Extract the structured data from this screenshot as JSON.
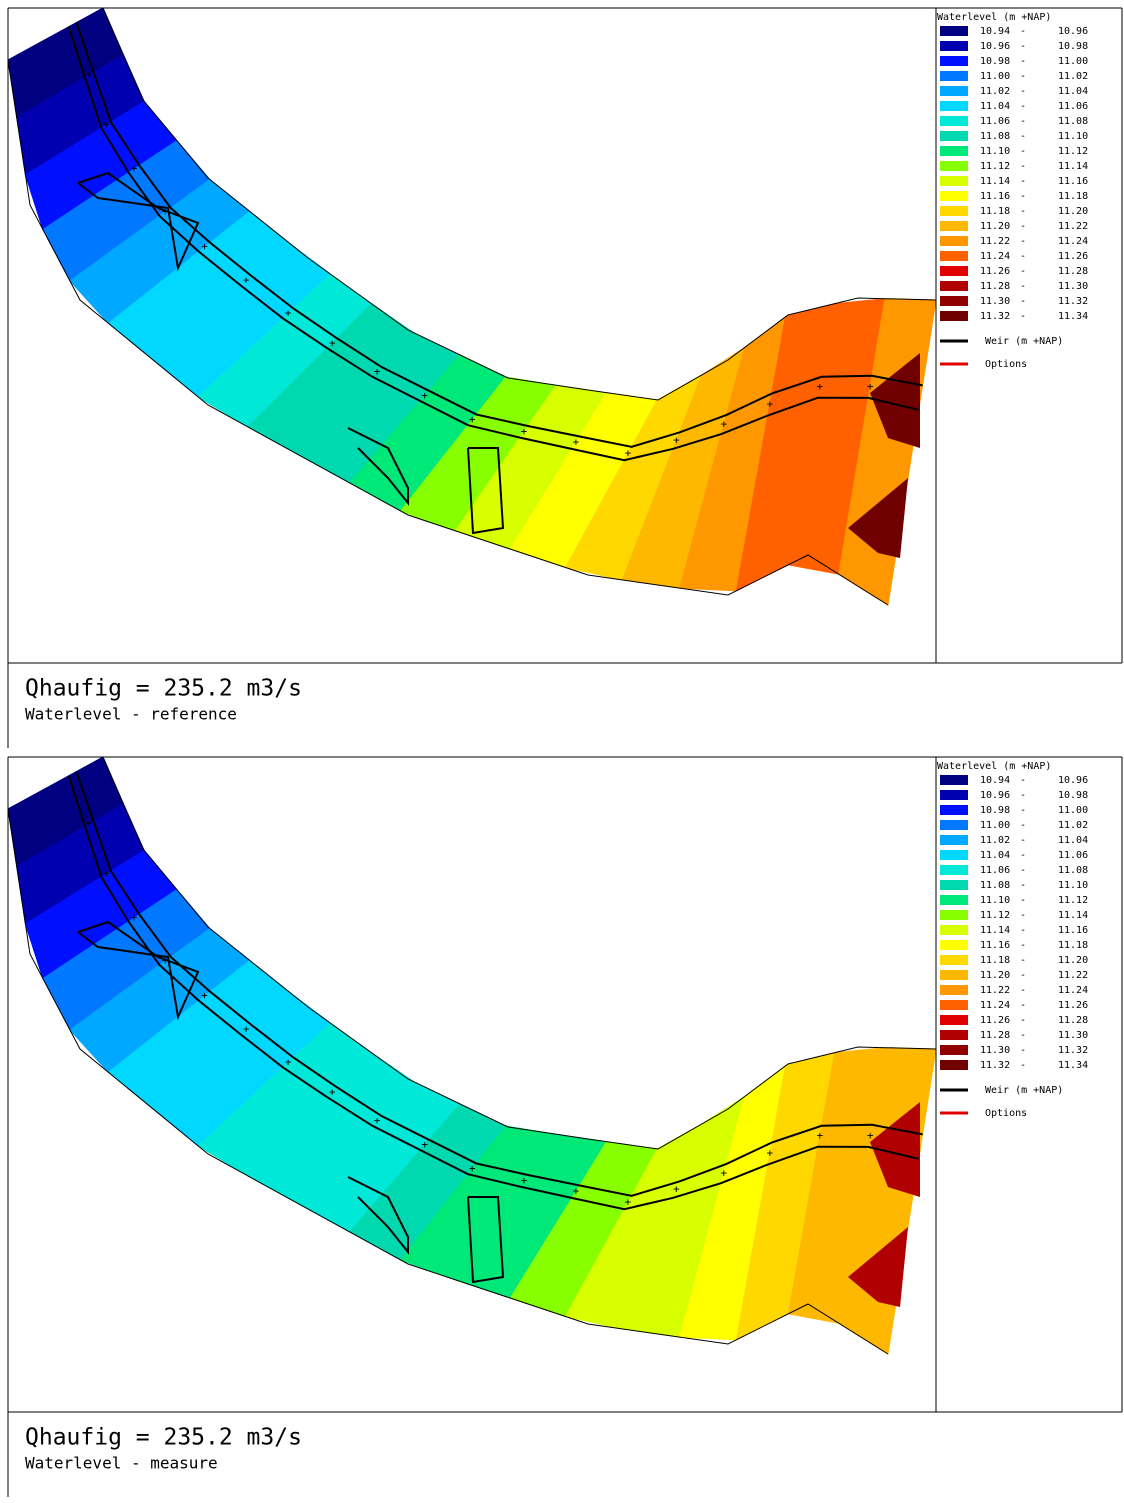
{
  "legend": {
    "title": "Waterlevel (m +NAP)",
    "items": [
      {
        "from": "10.94",
        "to": "10.96",
        "color": "#000080"
      },
      {
        "from": "10.96",
        "to": "10.98",
        "color": "#0000b0"
      },
      {
        "from": "10.98",
        "to": "11.00",
        "color": "#0010ff"
      },
      {
        "from": "11.00",
        "to": "11.02",
        "color": "#0078ff"
      },
      {
        "from": "11.02",
        "to": "11.04",
        "color": "#00a8ff"
      },
      {
        "from": "11.04",
        "to": "11.06",
        "color": "#00d8ff"
      },
      {
        "from": "11.06",
        "to": "11.08",
        "color": "#00e8d8"
      },
      {
        "from": "11.08",
        "to": "11.10",
        "color": "#00d8b0"
      },
      {
        "from": "11.10",
        "to": "11.12",
        "color": "#00e878"
      },
      {
        "from": "11.12",
        "to": "11.14",
        "color": "#88ff00"
      },
      {
        "from": "11.14",
        "to": "11.16",
        "color": "#d8ff00"
      },
      {
        "from": "11.16",
        "to": "11.18",
        "color": "#ffff00"
      },
      {
        "from": "11.18",
        "to": "11.20",
        "color": "#ffd800"
      },
      {
        "from": "11.20",
        "to": "11.22",
        "color": "#ffb800"
      },
      {
        "from": "11.22",
        "to": "11.24",
        "color": "#ff9800"
      },
      {
        "from": "11.24",
        "to": "11.26",
        "color": "#ff6000"
      },
      {
        "from": "11.26",
        "to": "11.28",
        "color": "#e00000"
      },
      {
        "from": "11.28",
        "to": "11.30",
        "color": "#b00000"
      },
      {
        "from": "11.30",
        "to": "11.32",
        "color": "#900000"
      },
      {
        "from": "11.32",
        "to": "11.34",
        "color": "#700000"
      }
    ],
    "weir": "Weir (m +NAP)",
    "options": "Options"
  },
  "panels": [
    {
      "caption": "Qhaufig = 235.2 m3/s",
      "subtitle": "Waterlevel - reference"
    },
    {
      "caption": "Qhaufig = 235.2 m3/s",
      "subtitle": "Waterlevel - measure"
    }
  ]
}
